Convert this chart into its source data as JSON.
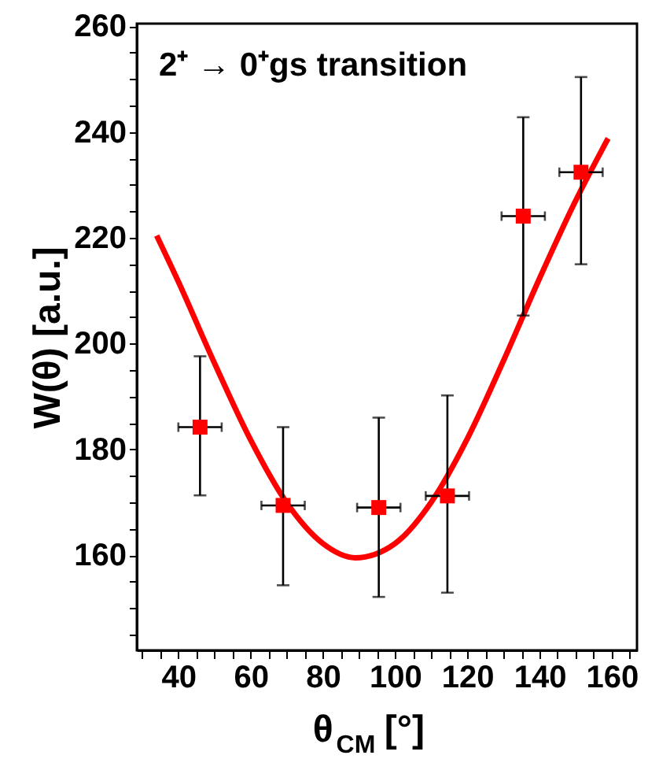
{
  "chart_data": {
    "type": "scatter",
    "xlabel": "θ$_{CM}$ [°]",
    "ylabel": "W(θ) [a.u.]",
    "annotations": [
      "2⁺ → 0⁺gs transition"
    ],
    "grid": false,
    "xlim": [
      28.5,
      167
    ],
    "ylim": [
      142,
      260.5
    ],
    "xticks": [
      {
        "value": 30,
        "label": null
      },
      {
        "value": 35,
        "label": null
      },
      40,
      {
        "value": 45,
        "label": null
      },
      {
        "value": 50,
        "label": null
      },
      {
        "value": 55,
        "label": null
      },
      60,
      {
        "value": 65,
        "label": null
      },
      {
        "value": 70,
        "label": null
      },
      {
        "value": 75,
        "label": null
      },
      80,
      {
        "value": 85,
        "label": null
      },
      {
        "value": 90,
        "label": null
      },
      {
        "value": 95,
        "label": null
      },
      100,
      {
        "value": 105,
        "label": null
      },
      {
        "value": 110,
        "label": null
      },
      {
        "value": 115,
        "label": null
      },
      120,
      {
        "value": 125,
        "label": null
      },
      {
        "value": 130,
        "label": null
      },
      {
        "value": 135,
        "label": null
      },
      140,
      {
        "value": 145,
        "label": null
      },
      {
        "value": 150,
        "label": null
      },
      {
        "value": 155,
        "label": null
      },
      160,
      {
        "value": 165,
        "label": null
      }
    ],
    "yticks": [
      {
        "value": 145,
        "label": null
      },
      {
        "value": 150,
        "label": null
      },
      {
        "value": 155,
        "label": null
      },
      160,
      {
        "value": 165,
        "label": null
      },
      {
        "value": 170,
        "label": null
      },
      {
        "value": 175,
        "label": null
      },
      180,
      {
        "value": 185,
        "label": null
      },
      {
        "value": 190,
        "label": null
      },
      {
        "value": 195,
        "label": null
      },
      200,
      {
        "value": 205,
        "label": null
      },
      {
        "value": 210,
        "label": null
      },
      {
        "value": 215,
        "label": null
      },
      220,
      {
        "value": 225,
        "label": null
      },
      {
        "value": 230,
        "label": null
      },
      {
        "value": 235,
        "label": null
      },
      240,
      {
        "value": 245,
        "label": null
      },
      {
        "value": 250,
        "label": null
      },
      {
        "value": 255,
        "label": null
      },
      260
    ],
    "series": [
      {
        "type": "line",
        "color": "#ff0000",
        "marker": "none",
        "line_style": "solid",
        "x": [
          34,
          40,
          50,
          60,
          70,
          80,
          89,
          100,
          110,
          120,
          130,
          140,
          150,
          159
        ],
        "values": [
          220.4,
          211.7,
          196.3,
          181.8,
          169.9,
          162.2,
          159.5,
          162.2,
          170,
          182,
          196.7,
          212.3,
          227,
          238.8
        ]
      },
      {
        "type": "scatter",
        "color": "#ff0000",
        "marker": "square",
        "x": [
          46,
          69,
          95.5,
          114.5,
          135.5,
          151.5
        ],
        "values": [
          184.2,
          169.4,
          169,
          171.2,
          224.1,
          232.4
        ],
        "errors": [
          [
            171.3,
            197.6
          ],
          [
            154.3,
            184.2
          ],
          [
            152.1,
            186
          ],
          [
            152.9,
            190.2
          ],
          [
            205.3,
            242.8
          ],
          [
            215,
            250.4
          ]
        ],
        "xerrors": [
          6,
          6,
          6,
          6,
          6,
          6
        ]
      }
    ]
  }
}
